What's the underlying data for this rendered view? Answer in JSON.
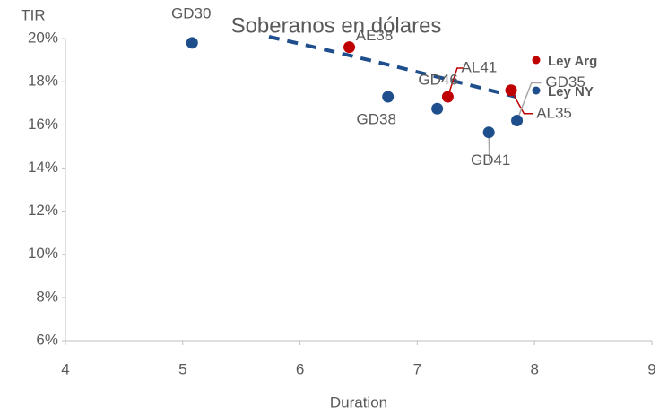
{
  "chart_data": {
    "type": "scatter",
    "title": "Soberanos en dólares",
    "x_label": "Duration",
    "y_label": "TIR",
    "xlim": [
      4,
      9
    ],
    "xticks": [
      4,
      5,
      6,
      7,
      8,
      9
    ],
    "ylim": [
      6,
      20
    ],
    "yticks": [
      {
        "value": 6,
        "label": "6%"
      },
      {
        "value": 8,
        "label": "8%"
      },
      {
        "value": 10,
        "label": "10%"
      },
      {
        "value": 12,
        "label": "12%"
      },
      {
        "value": 14,
        "label": "14%"
      },
      {
        "value": 16,
        "label": "16%"
      },
      {
        "value": 18,
        "label": "18%"
      },
      {
        "value": 20,
        "label": "20%"
      }
    ],
    "grid": false,
    "series": [
      {
        "name": "Ley Arg",
        "color": "#c00000",
        "labels": [
          "AE38",
          "AL41",
          "AL35"
        ],
        "x": [
          6.42,
          7.26,
          7.8
        ],
        "values": [
          19.6,
          17.3,
          17.6
        ]
      },
      {
        "name": "Ley NY",
        "color": "#1f4e8c",
        "labels": [
          "GD30",
          "GD38",
          "GD46",
          "GD41",
          "GD35"
        ],
        "x": [
          5.08,
          6.75,
          7.17,
          7.61,
          7.85
        ],
        "values": [
          19.8,
          17.3,
          16.75,
          15.65,
          16.2
        ]
      }
    ]
  }
}
